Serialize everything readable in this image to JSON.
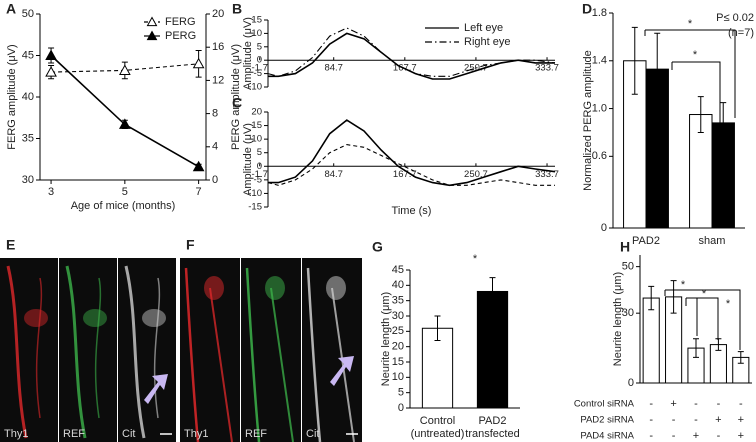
{
  "chart_data": [
    {
      "type": "line",
      "panel": "A",
      "xlabel": "Age of mice (months)",
      "ylabel": "FERG amplitude (μV)",
      "y2label": "PERG amplitude (μV)",
      "x": [
        3,
        5,
        7
      ],
      "xlim": [
        2.7,
        7.2
      ],
      "xticks": [
        3,
        5,
        7
      ],
      "ylim": [
        30,
        50
      ],
      "yticks": [
        30,
        35,
        40,
        45,
        50
      ],
      "y2lim": [
        0,
        20
      ],
      "y2ticks": [
        0,
        4,
        8,
        12,
        16,
        20
      ],
      "legend": "upper right",
      "series": [
        {
          "name": "FERG",
          "color": "#000000",
          "marker": "open-triangle",
          "dash": "dashed",
          "values": [
            43,
            43.2,
            44
          ],
          "errors": [
            0.8,
            1,
            1.6
          ]
        },
        {
          "name": "PERG",
          "axis": "y2",
          "color": "#000000",
          "marker": "filled-triangle",
          "dash": "solid",
          "values": [
            15,
            6.7,
            1.6
          ],
          "errors": [
            0.9,
            0.5,
            0.3
          ]
        }
      ]
    },
    {
      "type": "line",
      "panel": "B",
      "ylabel": "Amplitude (μV)",
      "xaxis": "zero",
      "legend": "upper right",
      "x": [
        8,
        20,
        40,
        60,
        80,
        100,
        120,
        140,
        160,
        180,
        200,
        220,
        240,
        260,
        280,
        300,
        320,
        343
      ],
      "xlim": [
        8,
        343
      ],
      "xticks": [
        -1.7,
        84.7,
        167.7,
        250.7,
        333.7
      ],
      "ylim": [
        -10,
        15
      ],
      "yticks": [
        -10,
        -5,
        0,
        5,
        10,
        15
      ],
      "series": [
        {
          "name": "Left eye",
          "color": "#000000",
          "dash": "solid",
          "values": [
            -6,
            -6,
            -5,
            -1,
            6,
            10,
            8,
            3,
            -2,
            -5,
            -7,
            -7,
            -5,
            -3,
            -1,
            0,
            -1,
            -1
          ]
        },
        {
          "name": "Right eye",
          "color": "#000000",
          "dash": "dashdot",
          "values": [
            -5,
            -6,
            -4,
            1,
            9,
            12,
            9,
            3,
            -2,
            -5,
            -6,
            -6,
            -4,
            -2,
            -1,
            0,
            0,
            -1
          ]
        }
      ]
    },
    {
      "type": "line",
      "panel": "C",
      "ylabel": "Amplitude (μV)",
      "xlabel": "Time (s)",
      "xaxis": "zero",
      "x": [
        8,
        20,
        40,
        60,
        80,
        100,
        120,
        140,
        160,
        180,
        200,
        220,
        240,
        260,
        280,
        300,
        320,
        343
      ],
      "xlim": [
        8,
        343
      ],
      "xticks": [
        -1.7,
        84.7,
        167.7,
        250.7,
        333.7
      ],
      "ylim": [
        -15,
        20
      ],
      "yticks": [
        -15,
        -10,
        -5,
        0,
        5,
        10,
        15,
        20
      ],
      "series": [
        {
          "color": "#000000",
          "dash": "solid",
          "values": [
            -6,
            -6,
            -4,
            2,
            12,
            17,
            13,
            6,
            0,
            -4,
            -6,
            -7,
            -6,
            -4,
            -2,
            0,
            -1,
            -2
          ]
        },
        {
          "color": "#000000",
          "dash": "dashed",
          "values": [
            -6,
            -7,
            -5,
            -1,
            5,
            8,
            7,
            4,
            1,
            -2,
            -5,
            -7,
            -7,
            -6,
            -5,
            -6,
            -7,
            -7
          ]
        }
      ]
    },
    {
      "type": "bar",
      "panel": "D",
      "ylabel": "Normalized PERG amplitude",
      "categories": [
        "PAD2",
        "sham"
      ],
      "ylim": [
        0,
        1.8
      ],
      "yticks": [
        0,
        0.6,
        {
          "value": 1,
          "label": "1.0"
        },
        1.4,
        1.8
      ],
      "series": [
        {
          "color": "#ffffff",
          "values": [
            1.4,
            0.95
          ],
          "errors": [
            0.28,
            0.15
          ]
        },
        {
          "color": "#000000",
          "values": [
            1.33,
            0.88
          ],
          "errors": [
            0.3,
            0.17
          ]
        }
      ],
      "annotations": [
        {
          "text": "*"
        },
        {
          "text": "*"
        },
        {
          "text": "P≤ 0.02"
        },
        {
          "text": "(n=7)"
        }
      ]
    },
    {
      "type": "bar",
      "panel": "G",
      "ylabel": "Neurite length (μm)",
      "categories": [
        "Control\n(untreated)",
        "PAD2\ntransfected"
      ],
      "ylim": [
        0,
        45
      ],
      "yticks": [
        0,
        5,
        10,
        15,
        20,
        25,
        30,
        35,
        40,
        45
      ],
      "values": [
        26,
        38
      ],
      "errors": [
        4,
        4.5
      ],
      "colors": [
        "#ffffff",
        "#000000"
      ],
      "annotations": [
        {
          "text": "*"
        }
      ]
    },
    {
      "type": "bar",
      "panel": "H",
      "ylabel": "Neurite length (μm)",
      "ylim": [
        0,
        55
      ],
      "yticks": [
        0,
        30,
        50
      ],
      "values": [
        36.5,
        37,
        15,
        16.5,
        11
      ],
      "errors": [
        5,
        7,
        4,
        2.5,
        2.5
      ],
      "color": "#ffffff",
      "annotations": [
        {
          "text": "*"
        },
        {
          "text": "*"
        },
        {
          "text": "*"
        }
      ],
      "table": {
        "rows": [
          {
            "label": "Control siRNA",
            "cells": [
              "-",
              "+",
              "-",
              "-",
              "-"
            ]
          },
          {
            "label": "PAD2 siRNA",
            "cells": [
              "-",
              "-",
              "-",
              "+",
              "+"
            ]
          },
          {
            "label": "PAD4 siRNA",
            "cells": [
              "-",
              "-",
              "+",
              "-",
              "+"
            ]
          }
        ]
      }
    }
  ],
  "image_panels": [
    {
      "panel": "E",
      "channels": [
        "Thy1",
        "REF",
        "Cit"
      ]
    },
    {
      "panel": "F",
      "channels": [
        "Thy1",
        "REF",
        "Cit"
      ]
    }
  ]
}
